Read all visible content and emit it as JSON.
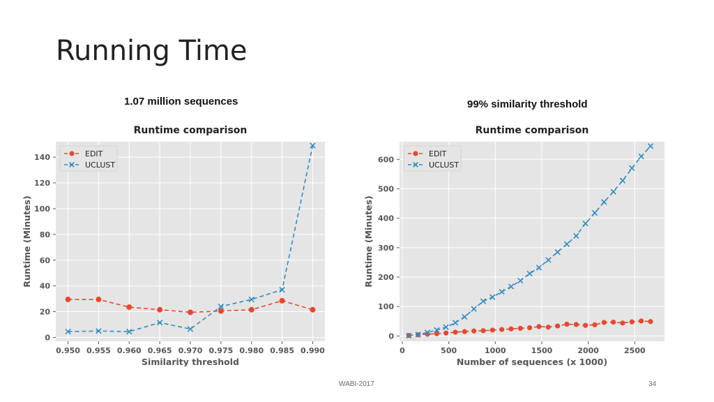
{
  "slide": {
    "title": "Running Time",
    "footer_left": "WABI-2017",
    "page_number": "34"
  },
  "captions": [
    "1.07 million sequences",
    "99% similarity threshold"
  ],
  "colors": {
    "edit": "#E24A33",
    "uclust": "#348ABD",
    "plot_bg": "#E5E5E5",
    "grid": "#FFFFFF",
    "axis_text": "#555555"
  },
  "chart_data": [
    {
      "type": "line",
      "title": "Runtime comparison",
      "xlabel": "Similarity threshold",
      "ylabel": "Runtime (Minutes)",
      "xlim": [
        0.948,
        0.992
      ],
      "ylim": [
        -3,
        152
      ],
      "xticks": [
        0.95,
        0.955,
        0.96,
        0.965,
        0.97,
        0.975,
        0.98,
        0.985,
        0.99
      ],
      "xtick_labels": [
        "0.950",
        "0.955",
        "0.960",
        "0.965",
        "0.970",
        "0.975",
        "0.980",
        "0.985",
        "0.990"
      ],
      "yticks": [
        0,
        20,
        40,
        60,
        80,
        100,
        120,
        140
      ],
      "grid": true,
      "legend": "upper-left",
      "x": [
        0.95,
        0.955,
        0.96,
        0.965,
        0.97,
        0.975,
        0.98,
        0.985,
        0.99
      ],
      "series": [
        {
          "name": "EDIT",
          "marker": "circle",
          "values": [
            29.5,
            29.5,
            23.5,
            21.5,
            19.5,
            20.5,
            21.5,
            28.5,
            21.5
          ]
        },
        {
          "name": "UCLUST",
          "marker": "x",
          "values": [
            4.5,
            5,
            4.5,
            11.5,
            6.5,
            24,
            29.5,
            37,
            149
          ]
        }
      ]
    },
    {
      "type": "line",
      "title": "Runtime comparison",
      "xlabel": "Number of sequences (x 1000)",
      "ylabel": "Runtime (Minutes)",
      "xlim": [
        -30,
        2820
      ],
      "ylim": [
        -18,
        660
      ],
      "xticks": [
        0,
        500,
        1000,
        1500,
        2000,
        2500
      ],
      "xtick_labels": [
        "0",
        "500",
        "1000",
        "1500",
        "2000",
        "2500"
      ],
      "yticks": [
        0,
        100,
        200,
        300,
        400,
        500,
        600
      ],
      "grid": true,
      "legend": "upper-left",
      "x": [
        70,
        170,
        270,
        370,
        470,
        570,
        670,
        770,
        870,
        970,
        1070,
        1170,
        1270,
        1370,
        1470,
        1570,
        1670,
        1770,
        1870,
        1970,
        2070,
        2170,
        2270,
        2370,
        2470,
        2570,
        2670
      ],
      "series": [
        {
          "name": "EDIT",
          "marker": "circle",
          "values": [
            2,
            4,
            6,
            8,
            10,
            13,
            15,
            17,
            18,
            20,
            22,
            24,
            26,
            28,
            32,
            30,
            34,
            40,
            39,
            36,
            38,
            46,
            47,
            44,
            48,
            51,
            49
          ]
        },
        {
          "name": "UCLUST",
          "marker": "x",
          "values": [
            1,
            5,
            12,
            20,
            30,
            45,
            65,
            92,
            118,
            132,
            150,
            168,
            188,
            212,
            232,
            258,
            285,
            312,
            340,
            382,
            418,
            455,
            490,
            528,
            570,
            610,
            645
          ]
        }
      ]
    }
  ]
}
